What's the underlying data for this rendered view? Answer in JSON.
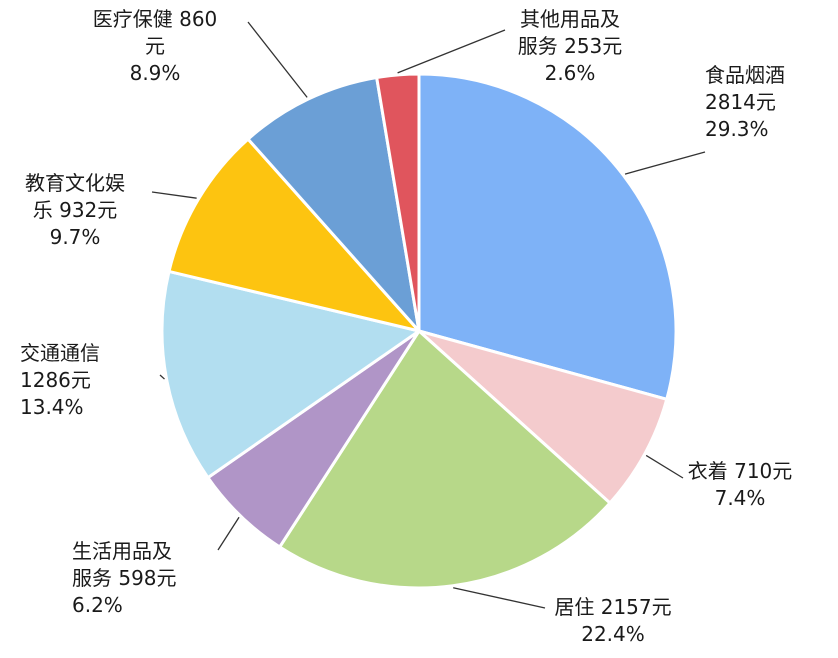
{
  "chart_data": {
    "type": "pie",
    "title": "",
    "slices": [
      {
        "label_lines": [
          "食品烟酒",
          "2814元",
          "29.3%"
        ],
        "category": "食品烟酒",
        "value": 2814,
        "percent": 29.3,
        "color": "#7eb2f7"
      },
      {
        "label_lines": [
          "衣着 710元",
          "7.4%"
        ],
        "category": "衣着",
        "value": 710,
        "percent": 7.4,
        "color": "#f4cbcd"
      },
      {
        "label_lines": [
          "居住 2157元",
          "22.4%"
        ],
        "category": "居住",
        "value": 2157,
        "percent": 22.4,
        "color": "#b7d889"
      },
      {
        "label_lines": [
          "生活用品及",
          "服务 598元",
          "6.2%"
        ],
        "category": "生活用品及服务",
        "value": 598,
        "percent": 6.2,
        "color": "#b095c7"
      },
      {
        "label_lines": [
          "交通通信",
          "1286元",
          "13.4%"
        ],
        "category": "交通通信",
        "value": 1286,
        "percent": 13.4,
        "color": "#b2def0"
      },
      {
        "label_lines": [
          "教育文化娱",
          "乐 932元",
          "9.7%"
        ],
        "category": "教育文化娱乐",
        "value": 932,
        "percent": 9.7,
        "color": "#fdc410"
      },
      {
        "label_lines": [
          "医疗保健 860",
          "元",
          "8.9%"
        ],
        "category": "医疗保健",
        "value": 860,
        "percent": 8.9,
        "color": "#6b9fd6"
      },
      {
        "label_lines": [
          "其他用品及",
          "服务 253元",
          "2.6%"
        ],
        "category": "其他用品及服务",
        "value": 253,
        "percent": 2.6,
        "color": "#e0555d"
      }
    ],
    "start_angle_deg": 0,
    "direction": "clockwise",
    "legend": "none",
    "data_labels": "outside-with-leader-lines"
  }
}
